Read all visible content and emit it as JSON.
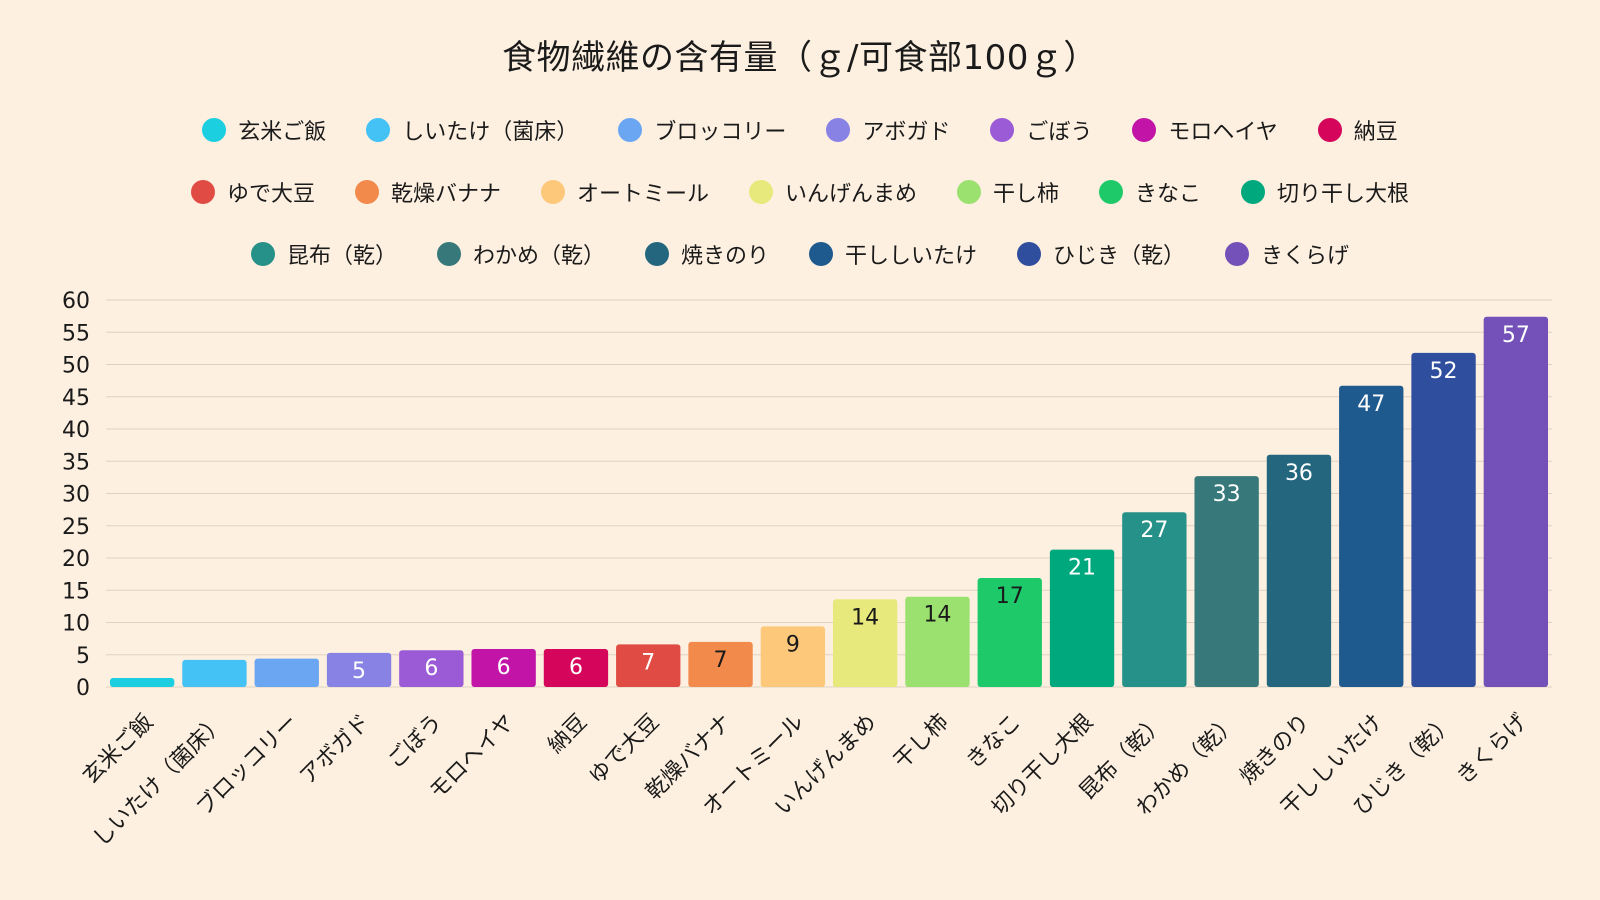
{
  "chart_data": {
    "type": "bar",
    "title": "食物繊維の含有量（ｇ/可食部100ｇ）",
    "xlabel": "",
    "ylabel": "",
    "ylim": [
      0,
      60
    ],
    "yticks": [
      0,
      5,
      10,
      15,
      20,
      25,
      30,
      35,
      40,
      45,
      50,
      55,
      60
    ],
    "grid": true,
    "legend_position": "top",
    "categories": [
      "玄米ご飯",
      "しいたけ（菌床）",
      "ブロッコリー",
      "アボガド",
      "ごぼう",
      "モロヘイヤ",
      "納豆",
      "ゆで大豆",
      "乾燥バナナ",
      "オートミール",
      "いんげんまめ",
      "干し柿",
      "きなこ",
      "切り干し大根",
      "昆布（乾）",
      "わかめ（乾）",
      "焼きのり",
      "干ししいたけ",
      "ひじき（乾）",
      "きくらげ"
    ],
    "values": [
      1.4,
      4.2,
      4.4,
      5.3,
      5.7,
      5.9,
      5.9,
      6.6,
      7.0,
      9.4,
      13.6,
      14.0,
      16.9,
      21.3,
      27.1,
      32.7,
      36.0,
      46.7,
      51.8,
      57.4
    ],
    "data_labels": [
      "",
      "",
      "",
      "5",
      "6",
      "6",
      "6",
      "7",
      "7",
      "9",
      "14",
      "14",
      "17",
      "21",
      "27",
      "33",
      "36",
      "47",
      "52",
      "57"
    ],
    "colors": [
      "#1ccfe0",
      "#45c2f5",
      "#6aa6f2",
      "#8782e4",
      "#9b5bd6",
      "#c215a8",
      "#d4055a",
      "#e04c43",
      "#f28a4c",
      "#fdc87a",
      "#e8e97c",
      "#9be170",
      "#1ec969",
      "#00a87e",
      "#269188",
      "#37797a",
      "#25667f",
      "#1f5a8e",
      "#2f4e9e",
      "#7451b8"
    ],
    "label_colors": [
      "#ffffff",
      "#ffffff",
      "#ffffff",
      "#ffffff",
      "#ffffff",
      "#ffffff",
      "#ffffff",
      "#ffffff",
      "#1a1a1a",
      "#1a1a1a",
      "#1a1a1a",
      "#1a1a1a",
      "#1a1a1a",
      "#ffffff",
      "#ffffff",
      "#ffffff",
      "#ffffff",
      "#ffffff",
      "#ffffff",
      "#ffffff"
    ]
  }
}
